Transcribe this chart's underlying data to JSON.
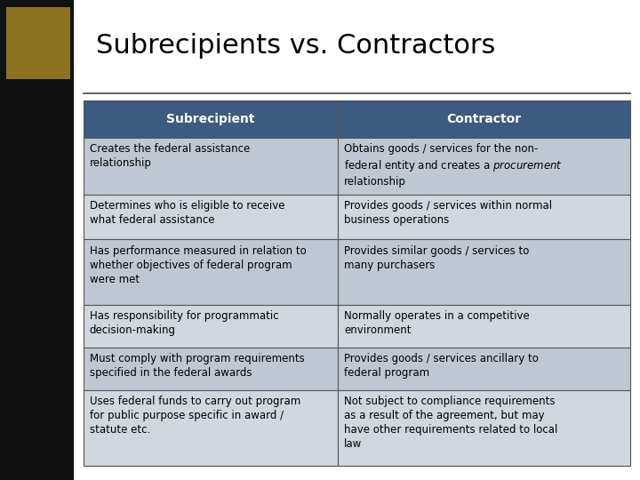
{
  "title": "Subrecipients vs. Contractors",
  "title_fontsize": 22,
  "title_color": "#000000",
  "bg_color": "#ffffff",
  "header_bg": "#3D5A80",
  "header_text_color": "#ffffff",
  "header_fontsize": 10,
  "row_odd_bg": "#BFC8D2",
  "row_even_bg": "#D0D7DF",
  "cell_fontsize": 8.5,
  "cell_text_color": "#000000",
  "gold_rect_color": "#8B7322",
  "border_color": "#555555",
  "left_bar_color": "#111111",
  "col1_header": "Subrecipient",
  "col2_header": "Contractor",
  "rows": [
    [
      "Creates the federal assistance\nrelationship",
      "Obtains goods / services for the non-\nfederal entity and creates a $\\it{procurement}$\nrelationship"
    ],
    [
      "Determines who is eligible to receive\nwhat federal assistance",
      "Provides goods / services within normal\nbusiness operations"
    ],
    [
      "Has performance measured in relation to\nwhether objectives of federal program\nwere met",
      "Provides similar goods / services to\nmany purchasers"
    ],
    [
      "Has responsibility for programmatic\ndecision-making",
      "Normally operates in a competitive\nenvironment"
    ],
    [
      "Must comply with program requirements\nspecified in the federal awards",
      "Provides goods / services ancillary to\nfederal program"
    ],
    [
      "Uses federal funds to carry out program\nfor public purpose specific in award /\nstatute etc.",
      "Not subject to compliance requirements\nas a result of the agreement, but may\nhave other requirements related to local\nlaw"
    ]
  ]
}
